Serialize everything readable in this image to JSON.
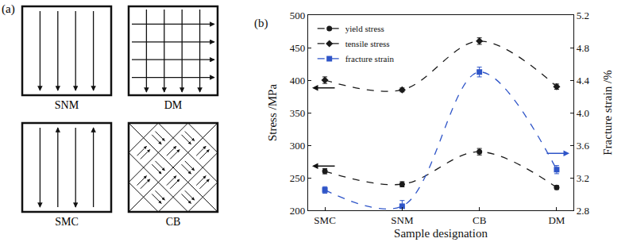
{
  "diagram": {
    "label": "(a)",
    "panels": [
      "SNM",
      "DM",
      "SMC",
      "CB"
    ]
  },
  "chart_data": {
    "type": "line",
    "annotations": [
      "(b)"
    ],
    "x_label": "Sample designation",
    "y_label": "Stress /MPa",
    "y2_label": "Fracture strain /%",
    "categories": [
      "SMC",
      "SNM",
      "CB",
      "DM"
    ],
    "series": [
      {
        "name": "yield stress",
        "color": "#1a1a1a",
        "marker": "circle",
        "line_style": "dash",
        "values": [
          260,
          240,
          290,
          235
        ],
        "errors": [
          4,
          4,
          5,
          3
        ]
      },
      {
        "name": "tensile stress",
        "color": "#1a1a1a",
        "marker": "diamond",
        "line_style": "dash",
        "values": [
          400,
          385,
          460,
          390
        ],
        "errors": [
          5,
          3,
          5,
          4
        ]
      },
      {
        "name": "fracture strain",
        "color": "#2f55c8",
        "marker": "square",
        "line_style": "dash",
        "axis": "y2",
        "values": [
          3.05,
          2.85,
          4.5,
          3.3
        ],
        "errors": [
          0.04,
          0.07,
          0.06,
          0.05
        ]
      }
    ],
    "ylim": [
      200,
      500
    ],
    "yticks": [
      200,
      250,
      300,
      350,
      400,
      450,
      500
    ],
    "y2lim": [
      2.8,
      5.2
    ],
    "y2ticks": [
      2.8,
      3.2,
      3.6,
      {
        "value": 4,
        "label": "4.0"
      },
      4.4,
      4.8,
      5.2
    ],
    "grid": false,
    "legend": "upper left"
  }
}
